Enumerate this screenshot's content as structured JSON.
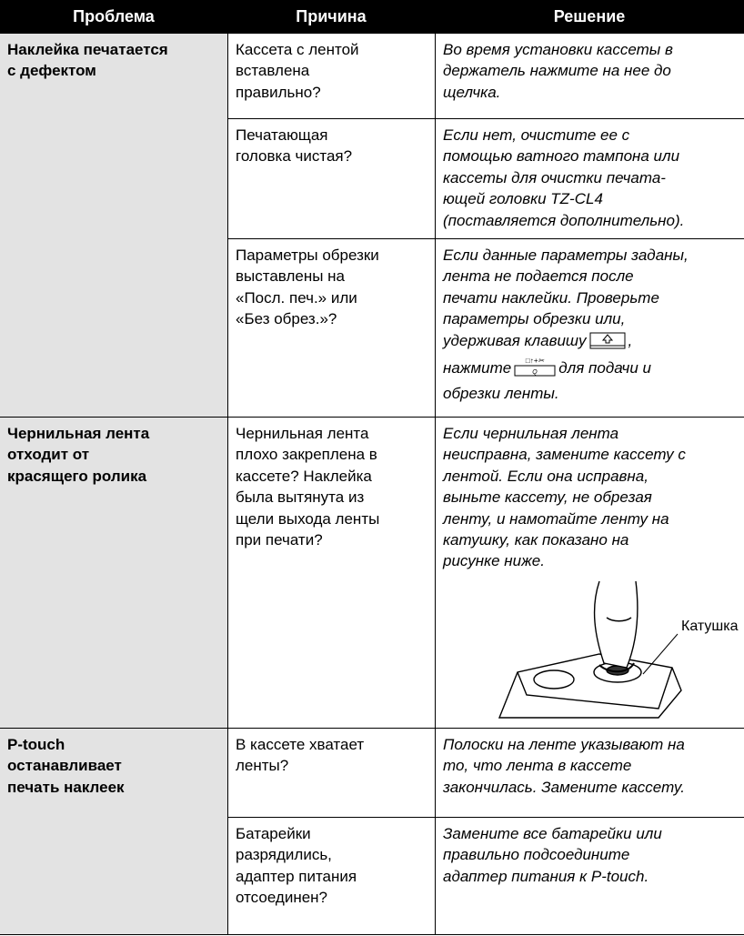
{
  "table": {
    "headers": [
      "Проблема",
      "Причина",
      "Решение"
    ],
    "rows": [
      {
        "problem": [
          "Наклейка печатается",
          "с дефектом"
        ],
        "causes": [
          {
            "cause": [
              "Кассета с лентой",
              "вставлена",
              "правильно?"
            ],
            "solution": [
              "Во время установки кассеты в",
              "держатель нажмите на нее до",
              "щелчка."
            ]
          },
          {
            "cause": [
              "Печатающая",
              "головка чистая?"
            ],
            "solution": [
              "Если нет, очистите ее с",
              "помощью ватного тампона или",
              "кассеты для очистки печата-",
              "ющей головки TZ-CL4",
              "(поставляется дополнительно)."
            ]
          },
          {
            "cause": [
              "Параметры обрезки",
              "выставлены на",
              "«Посл. печ.» или",
              "«Без обрез.»?"
            ],
            "solution": [
              "Если данные параметры заданы,",
              "лента не подается после",
              "печати наклейки. Проверьте",
              "параметры обрезки или,",
              [
                "удерживая клавишу",
                ","
              ],
              [
                "нажмите",
                "для подачи и"
              ],
              "обрезки ленты."
            ]
          }
        ]
      },
      {
        "problem": [
          "Чернильная лента",
          "отходит от",
          "красящего ролика"
        ],
        "causes": [
          {
            "cause": [
              "Чернильная лента",
              "плохо закреплена в",
              "кассете? Наклейка",
              "была вытянута из",
              "щели выхода ленты",
              "при печати?"
            ],
            "solution": [
              "Если чернильная лента",
              "неисправна, замените кассету с",
              "лентой. Если она исправна,",
              "выньте кассету, не обрезая",
              "ленту, и намотайте ленту на",
              "катушку, как показано на",
              "рисунке ниже."
            ],
            "figure_label": "Катушка"
          }
        ]
      },
      {
        "problem": [
          "P-touch",
          "останавливает",
          "печать наклеек"
        ],
        "causes": [
          {
            "cause": [
              "В кассете хватает",
              "ленты?"
            ],
            "solution": [
              "Полоски на ленте указывают на",
              "то, что лента в кассете",
              "закончилась. Замените кассету."
            ]
          },
          {
            "cause": [
              "Батарейки",
              "разрядились,",
              "адаптер питания",
              "отсоединен?"
            ],
            "solution": [
              "Замените все батарейки или",
              "правильно подсоедините",
              "адаптер питания к P-touch."
            ]
          }
        ]
      }
    ]
  }
}
